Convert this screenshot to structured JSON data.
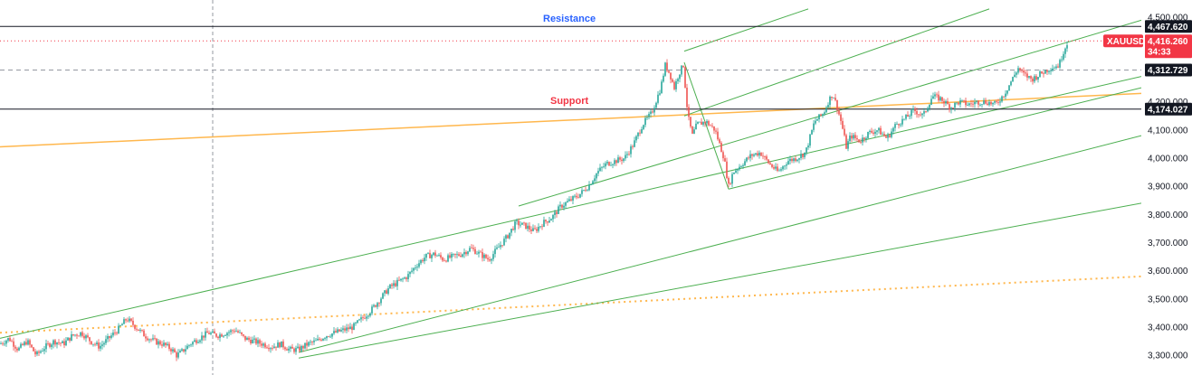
{
  "chart_data": {
    "type": "candlestick",
    "symbol": "XAUUSD",
    "ylim": [
      3270,
      4520
    ],
    "y_ticks": [
      3300,
      3400,
      3500,
      3600,
      3700,
      3800,
      3900,
      4000,
      4100,
      4200,
      4500
    ],
    "y_tick_labels": [
      "3,300.000",
      "3,400.000",
      "3,500.000",
      "3,600.000",
      "3,700.000",
      "3,800.000",
      "3,900.000",
      "4,000.000",
      "4,100.000",
      "4,200.000",
      "4,500.000"
    ],
    "current_price": {
      "value": 4416.26,
      "label": "4,416.260",
      "countdown": "34:33",
      "color": "#f23645"
    },
    "levels": [
      {
        "name": "resistance-line",
        "value": 4467.62,
        "label": "4,467.620",
        "style": "solid",
        "color": "#131722"
      },
      {
        "name": "mid-dashed-line",
        "value": 4312.729,
        "label": "4,312.729",
        "style": "dashed",
        "color": "#9598a1"
      },
      {
        "name": "support-line",
        "value": 4174.027,
        "label": "4,174.027",
        "style": "solid",
        "color": "#131722"
      }
    ],
    "annotations": [
      {
        "name": "resistance",
        "text": "Resistance",
        "level": 4467.62,
        "color": "#2962ff"
      },
      {
        "name": "support",
        "text": "Support",
        "level": 4174.027,
        "color": "#f23645"
      }
    ],
    "price_path": [
      [
        0,
        3340
      ],
      [
        10,
        3360
      ],
      [
        20,
        3320
      ],
      [
        30,
        3350
      ],
      [
        40,
        3300
      ],
      [
        50,
        3330
      ],
      [
        60,
        3350
      ],
      [
        70,
        3340
      ],
      [
        80,
        3370
      ],
      [
        90,
        3380
      ],
      [
        100,
        3350
      ],
      [
        110,
        3330
      ],
      [
        120,
        3360
      ],
      [
        130,
        3390
      ],
      [
        140,
        3430
      ],
      [
        150,
        3400
      ],
      [
        160,
        3370
      ],
      [
        170,
        3350
      ],
      [
        180,
        3340
      ],
      [
        190,
        3320
      ],
      [
        195,
        3300
      ],
      [
        200,
        3310
      ],
      [
        210,
        3340
      ],
      [
        220,
        3360
      ],
      [
        230,
        3380
      ],
      [
        240,
        3370
      ],
      [
        250,
        3380
      ],
      [
        260,
        3390
      ],
      [
        270,
        3360
      ],
      [
        280,
        3350
      ],
      [
        290,
        3340
      ],
      [
        300,
        3330
      ],
      [
        310,
        3340
      ],
      [
        320,
        3320
      ],
      [
        330,
        3320
      ],
      [
        340,
        3340
      ],
      [
        350,
        3350
      ],
      [
        360,
        3370
      ],
      [
        370,
        3380
      ],
      [
        380,
        3390
      ],
      [
        390,
        3400
      ],
      [
        400,
        3430
      ],
      [
        410,
        3460
      ],
      [
        420,
        3500
      ],
      [
        430,
        3540
      ],
      [
        440,
        3560
      ],
      [
        450,
        3580
      ],
      [
        460,
        3620
      ],
      [
        470,
        3650
      ],
      [
        480,
        3660
      ],
      [
        490,
        3640
      ],
      [
        500,
        3650
      ],
      [
        510,
        3660
      ],
      [
        520,
        3680
      ],
      [
        530,
        3660
      ],
      [
        540,
        3640
      ],
      [
        550,
        3680
      ],
      [
        560,
        3720
      ],
      [
        570,
        3770
      ],
      [
        580,
        3760
      ],
      [
        590,
        3740
      ],
      [
        600,
        3770
      ],
      [
        610,
        3790
      ],
      [
        620,
        3830
      ],
      [
        630,
        3850
      ],
      [
        640,
        3870
      ],
      [
        650,
        3900
      ],
      [
        660,
        3950
      ],
      [
        670,
        3980
      ],
      [
        680,
        3990
      ],
      [
        690,
        4000
      ],
      [
        700,
        4050
      ],
      [
        710,
        4120
      ],
      [
        720,
        4160
      ],
      [
        730,
        4250
      ],
      [
        735,
        4330
      ],
      [
        740,
        4300
      ],
      [
        745,
        4250
      ],
      [
        750,
        4300
      ],
      [
        755,
        4330
      ],
      [
        760,
        4150
      ],
      [
        765,
        4080
      ],
      [
        770,
        4120
      ],
      [
        780,
        4130
      ],
      [
        790,
        4100
      ],
      [
        800,
        4000
      ],
      [
        805,
        3900
      ],
      [
        810,
        3950
      ],
      [
        820,
        3980
      ],
      [
        830,
        4010
      ],
      [
        840,
        4020
      ],
      [
        850,
        3980
      ],
      [
        860,
        3950
      ],
      [
        870,
        3990
      ],
      [
        880,
        4000
      ],
      [
        890,
        4020
      ],
      [
        900,
        4130
      ],
      [
        910,
        4160
      ],
      [
        915,
        4200
      ],
      [
        920,
        4230
      ],
      [
        925,
        4180
      ],
      [
        930,
        4120
      ],
      [
        935,
        4040
      ],
      [
        940,
        4080
      ],
      [
        950,
        4060
      ],
      [
        960,
        4090
      ],
      [
        970,
        4100
      ],
      [
        980,
        4070
      ],
      [
        990,
        4120
      ],
      [
        1000,
        4140
      ],
      [
        1010,
        4170
      ],
      [
        1020,
        4150
      ],
      [
        1030,
        4220
      ],
      [
        1040,
        4210
      ],
      [
        1050,
        4180
      ],
      [
        1060,
        4200
      ],
      [
        1070,
        4190
      ],
      [
        1080,
        4200
      ],
      [
        1090,
        4200
      ],
      [
        1100,
        4190
      ],
      [
        1110,
        4230
      ],
      [
        1120,
        4290
      ],
      [
        1125,
        4320
      ],
      [
        1130,
        4300
      ],
      [
        1140,
        4280
      ],
      [
        1150,
        4300
      ],
      [
        1160,
        4320
      ],
      [
        1170,
        4330
      ],
      [
        1175,
        4380
      ],
      [
        1180,
        4416.26
      ]
    ]
  },
  "overlays": {
    "channel_lines": [
      {
        "name": "channel-upper-line",
        "x1": 756,
        "y1": 4380,
        "x2": 893,
        "y2": 4530,
        "color": "#4caf50"
      },
      {
        "name": "channel-line-2",
        "x1": 756,
        "y1": 4150,
        "x2": 1093,
        "y2": 4530,
        "color": "#4caf50"
      },
      {
        "name": "channel-line-3",
        "x1": 573,
        "y1": 3830,
        "x2": 1261,
        "y2": 4490,
        "color": "#4caf50"
      },
      {
        "name": "channel-line-4",
        "x1": 0,
        "y1": 3360,
        "x2": 1261,
        "y2": 4290,
        "color": "#4caf50"
      },
      {
        "name": "channel-line-5",
        "x1": 330,
        "y1": 3310,
        "x2": 1261,
        "y2": 4080,
        "color": "#4caf50"
      },
      {
        "name": "channel-line-6",
        "x1": 330,
        "y1": 3290,
        "x2": 1261,
        "y2": 3840,
        "color": "#4caf50"
      },
      {
        "name": "channel-line-7",
        "x1": 805,
        "y1": 3890,
        "x2": 1261,
        "y2": 4250,
        "color": "#4caf50"
      },
      {
        "name": "zigzag-line-1",
        "x1": 756,
        "y1": 4340,
        "x2": 805,
        "y2": 3890,
        "color": "#4caf50"
      }
    ],
    "trend_lines": [
      {
        "name": "orange-trend-line",
        "x1": 0,
        "y1": 4040,
        "x2": 1261,
        "y2": 4230,
        "color": "#ffb74d",
        "style": "solid"
      },
      {
        "name": "orange-dotted-line",
        "x1": 0,
        "y1": 3380,
        "x2": 1261,
        "y2": 3580,
        "color": "#ffb74d",
        "style": "dotted"
      }
    ],
    "vertical_dashed_x": 235
  }
}
